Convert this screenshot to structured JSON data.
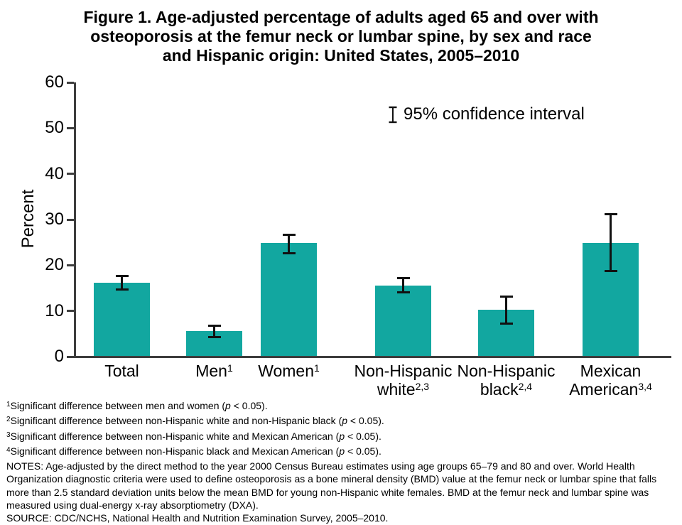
{
  "figure": {
    "title_lines": [
      "Figure 1. Age-adjusted percentage of adults aged 65 and over with",
      "osteoporosis at the femur neck or lumbar spine, by sex and race",
      "and Hispanic origin: United States, 2005–2010"
    ]
  },
  "chart_data": {
    "type": "bar",
    "title": "Figure 1. Age-adjusted percentage of adults aged 65 and over with osteoporosis at the femur neck or lumbar spine, by sex and race and Hispanic origin: United States, 2005–2010",
    "xlabel": "",
    "ylabel": "Percent",
    "ylim": [
      0,
      60
    ],
    "y_ticks": [
      0,
      10,
      20,
      30,
      40,
      50,
      60
    ],
    "grid": false,
    "legend": {
      "symbol": "error-bar-I",
      "label": "95% confidence interval",
      "position": "top-right-inside"
    },
    "bar_color": "#12A7A0",
    "error_bar_color": "#111111",
    "categories": [
      "Total",
      "Men",
      "Women",
      "Non-Hispanic white",
      "Non-Hispanic black",
      "Mexican American"
    ],
    "values": [
      16.1,
      5.6,
      24.8,
      15.6,
      10.2,
      24.9
    ],
    "ci_low": [
      14.7,
      4.3,
      22.6,
      14.0,
      7.2,
      18.7
    ],
    "ci_high": [
      17.6,
      6.8,
      26.7,
      17.1,
      13.2,
      31.1
    ],
    "bars": [
      {
        "x": 132,
        "label_lines": [
          {
            "text": "Total",
            "sup": ""
          }
        ]
      },
      {
        "x": 262,
        "label_lines": [
          {
            "text": "Men",
            "sup": "1"
          }
        ]
      },
      {
        "x": 367,
        "label_lines": [
          {
            "text": "Women",
            "sup": "1"
          }
        ]
      },
      {
        "x": 528,
        "label_lines": [
          {
            "text": "Non-Hispanic",
            "sup": ""
          },
          {
            "text": "white",
            "sup": "2,3"
          }
        ]
      },
      {
        "x": 673,
        "label_lines": [
          {
            "text": "Non-Hispanic",
            "sup": ""
          },
          {
            "text": "black",
            "sup": "2,4"
          }
        ]
      },
      {
        "x": 820,
        "label_lines": [
          {
            "text": "Mexican",
            "sup": ""
          },
          {
            "text": "American",
            "sup": "3,4"
          }
        ]
      }
    ]
  },
  "footnotes": [
    {
      "marker": "1",
      "text": "Significant difference between men and women (p < 0.05)."
    },
    {
      "marker": "2",
      "text": "Significant difference between non-Hispanic white and non-Hispanic black (p < 0.05)."
    },
    {
      "marker": "3",
      "text": "Significant difference between non-Hispanic white and Mexican American (p < 0.05)."
    },
    {
      "marker": "4",
      "text": "Significant difference between non-Hispanic black and Mexican American (p < 0.05)."
    }
  ],
  "notes": "NOTES: Age-adjusted by the direct method to the year 2000 Census Bureau estimates using age groups 65–79 and 80 and over. World Health Organization diagnostic criteria were used to define osteoporosis as a bone mineral density (BMD) value at the femur neck or lumbar spine that falls more than 2.5 standard deviation units below the mean BMD for young non-Hispanic white females. BMD at the femur neck and lumbar spine was measured using dual-energy x-ray absorptiometry (DXA).",
  "source": "SOURCE: CDC/NCHS, National Health and Nutrition Examination Survey, 2005–2010."
}
